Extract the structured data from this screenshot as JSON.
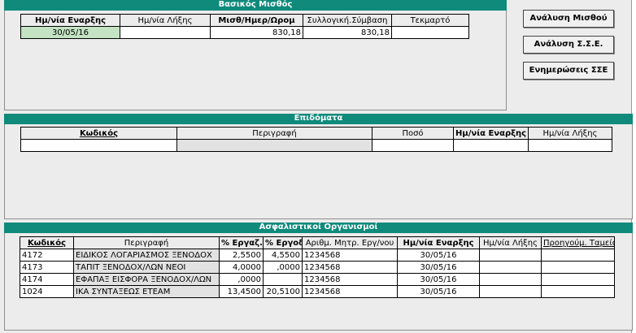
{
  "salary": {
    "title": "Βασικός Μισθός",
    "headers": [
      "Ημ/νία Εναρξης",
      "Ημ/νία Λήξης",
      "Μισθ/Ημερ/Ωρομ",
      "Συλλογική.Σύμβαση",
      "Τεκμαρτό"
    ],
    "row": [
      "30/05/16",
      "",
      "830,18",
      "830,18",
      ""
    ]
  },
  "buttons": {
    "salary_analysis": "Ανάλυση Μισθού",
    "sse_analysis": "Ανάλυση Σ.Σ.Ε.",
    "sse_updates": "Ενημερώσεις ΣΣΕ"
  },
  "allowances": {
    "title": "Επιδόματα",
    "headers": [
      "Κωδικός",
      "Περιγραφή",
      "Ποσό",
      "Ημ/νία Εναρξης",
      "Ημ/νία Λήξης"
    ],
    "row": [
      "",
      "",
      "",
      "",
      ""
    ]
  },
  "insurance": {
    "title": "Ασφαλιστικοί Οργανισμοί",
    "headers": [
      "Κωδικός",
      "Περιγραφή",
      "% Εργαζ.",
      "% Εργοδ.",
      "Αριθμ. Μητρ. Εργ/νου",
      "Ημ/νία Εναρξης",
      "Ημ/νία Λήξης",
      "Προηγούμ. Ταμείο"
    ],
    "rows": [
      [
        "4172",
        "ΕΙΔΙΚΟΣ ΛΟΓΑΡΙΑΣΜΟΣ ΞΕΝΟΔΟΧ",
        "2,5500",
        "4,5500",
        "1234568",
        "30/05/16",
        "",
        ""
      ],
      [
        "4173",
        "ΤΑΠΙΤ ΞΕΝΟΔΟΧ/ΛΩΝ ΝΕΟΙ",
        "4,0000",
        ",0000",
        "1234568",
        "30/05/16",
        "",
        ""
      ],
      [
        "4174",
        "ΕΦΑΠΑΞ ΕΙΣΦΟΡΑ ΞΕΝΟΔΟΧ/ΛΩΝ",
        ",0000",
        "",
        "1234568",
        "30/05/16",
        "",
        ""
      ],
      [
        "1024",
        "ΙΚΑ ΣΥΝΤΑΞΕΩΣ ΕΤΕΑΜ",
        "13,4500",
        "20,5100",
        "1234568",
        "30/05/16",
        "",
        ""
      ]
    ]
  }
}
